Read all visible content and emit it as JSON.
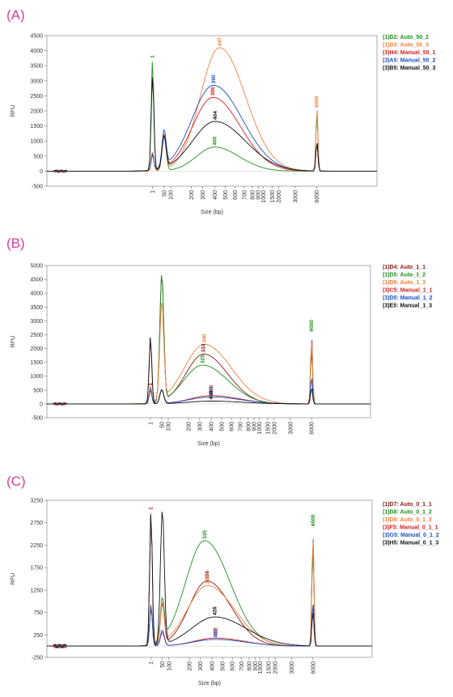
{
  "chart_data": [
    {
      "type": "line",
      "panel_label": "(A)",
      "xlabel": "Size (bp)",
      "ylabel": "RFU",
      "ylim": [
        -500,
        4500
      ],
      "yticks": [
        -500,
        0,
        500,
        1000,
        1500,
        2000,
        2500,
        3000,
        3500,
        4000,
        4500
      ],
      "xticks": [
        "1",
        "50",
        "100",
        "200",
        "300",
        "400",
        "500",
        "600",
        "700",
        "800",
        "900",
        "1000",
        "1500",
        "2000",
        "3000",
        "6000"
      ],
      "legend_position": "right",
      "series": [
        {
          "name": "(1)D2: Auto_50_2",
          "color": "#1f8f1f",
          "peaks": [
            {
              "x": "1",
              "y": 3700
            },
            {
              "x": "50",
              "y": 1200
            },
            {
              "x": "400",
              "y": 800
            },
            {
              "x": "6000",
              "y": 2000
            }
          ]
        },
        {
          "name": "(1)D3: Auto_50_3",
          "color": "#f08040",
          "peaks": [
            {
              "x": "1",
              "y": 600
            },
            {
              "x": "50",
              "y": 1200
            },
            {
              "x": "447",
              "y": 4100
            },
            {
              "x": "6000",
              "y": 2200
            }
          ]
        },
        {
          "name": "(3)H4: Manual_50_1",
          "color": "#d42020",
          "peaks": [
            {
              "x": "1",
              "y": 600
            },
            {
              "x": "50",
              "y": 1100
            },
            {
              "x": "386",
              "y": 2450
            },
            {
              "x": "6000",
              "y": 1000
            }
          ]
        },
        {
          "name": "(3)A5: Manual_50_2",
          "color": "#1f4fc0",
          "peaks": [
            {
              "x": "1",
              "y": 500
            },
            {
              "x": "50",
              "y": 1200
            },
            {
              "x": "390",
              "y": 2850
            },
            {
              "x": "6000",
              "y": 1000
            }
          ]
        },
        {
          "name": "(3)B5: Manual_50_3",
          "color": "#111111",
          "peaks": [
            {
              "x": "1",
              "y": 3150
            },
            {
              "x": "50",
              "y": 1050
            },
            {
              "x": "404",
              "y": 1650
            },
            {
              "x": "6000",
              "y": 1000
            }
          ]
        }
      ],
      "annotations": [
        "1",
        "112",
        "447",
        "390",
        "386",
        "404",
        "392",
        "6000",
        "6000"
      ]
    },
    {
      "type": "line",
      "panel_label": "(B)",
      "xlabel": "Size (bp)",
      "ylabel": "RFU",
      "ylim": [
        -500,
        5000
      ],
      "yticks": [
        -500,
        0,
        500,
        1000,
        1500,
        2000,
        2500,
        3000,
        3500,
        4000,
        4500,
        5000
      ],
      "xticks": [
        "1",
        "50",
        "100",
        "200",
        "300",
        "400",
        "500",
        "600",
        "700",
        "800",
        "900",
        "1000",
        "1500",
        "2000",
        "3000",
        "6000"
      ],
      "legend_position": "right",
      "series": [
        {
          "name": "(1)D4: Auto_1_1",
          "color": "#8b1a1a",
          "peaks": [
            {
              "x": "1",
              "y": 600
            },
            {
              "x": "50",
              "y": 4600
            },
            {
              "x": "334",
              "y": 1800
            },
            {
              "x": "6000",
              "y": 2500
            }
          ]
        },
        {
          "name": "(1)D5: Auto_1_2",
          "color": "#1f8f1f",
          "peaks": [
            {
              "x": "1",
              "y": 600
            },
            {
              "x": "50",
              "y": 4600
            },
            {
              "x": "325",
              "y": 1400
            },
            {
              "x": "6000",
              "y": 2000
            }
          ]
        },
        {
          "name": "(1)D6: Auto_1_3",
          "color": "#f08040",
          "peaks": [
            {
              "x": "1",
              "y": 600
            },
            {
              "x": "50",
              "y": 3500
            },
            {
              "x": "340",
              "y": 2150
            },
            {
              "x": "6000",
              "y": 2400
            }
          ]
        },
        {
          "name": "(3)C5: Manual_1_1",
          "color": "#d42020",
          "peaks": [
            {
              "x": "1",
              "y": 2400
            },
            {
              "x": "50",
              "y": 500
            },
            {
              "x": "400",
              "y": 300
            },
            {
              "x": "6000",
              "y": 1000
            }
          ]
        },
        {
          "name": "(3)D5: Manual_1_2",
          "color": "#1f4fc0",
          "peaks": [
            {
              "x": "1",
              "y": 500
            },
            {
              "x": "50",
              "y": 500
            },
            {
              "x": "400",
              "y": 250
            },
            {
              "x": "6000",
              "y": 1000
            }
          ]
        },
        {
          "name": "(3)E5: Manual_1_3",
          "color": "#111111",
          "peaks": [
            {
              "x": "1",
              "y": 2450
            },
            {
              "x": "50",
              "y": 500
            },
            {
              "x": "400",
              "y": 100
            },
            {
              "x": "6000",
              "y": 600
            }
          ]
        }
      ],
      "annotations": [
        "1",
        "123",
        "334",
        "340",
        "325",
        "6000"
      ]
    },
    {
      "type": "line",
      "panel_label": "(C)",
      "xlabel": "Size (bp)",
      "ylabel": "RFU",
      "ylim": [
        -250,
        3250
      ],
      "yticks": [
        -250,
        250,
        750,
        1250,
        1750,
        2250,
        2750,
        3250
      ],
      "xticks": [
        "1",
        "50",
        "100",
        "200",
        "300",
        "400",
        "500",
        "600",
        "700",
        "800",
        "900",
        "1000",
        "1500",
        "2000",
        "3000",
        "6000"
      ],
      "legend_position": "right",
      "series": [
        {
          "name": "(1)D7: Auto_0_1_1",
          "color": "#8b1a1a",
          "peaks": [
            {
              "x": "1",
              "y": 3000
            },
            {
              "x": "50",
              "y": 900
            },
            {
              "x": "356",
              "y": 1450
            },
            {
              "x": "6000",
              "y": 2600
            }
          ]
        },
        {
          "name": "(1)D8: Auto_0_1_2",
          "color": "#1f8f1f",
          "peaks": [
            {
              "x": "1",
              "y": 900
            },
            {
              "x": "50",
              "y": 900
            },
            {
              "x": "335",
              "y": 2350
            },
            {
              "x": "6000",
              "y": 2300
            }
          ]
        },
        {
          "name": "(1)D9: Auto_0_1_3",
          "color": "#f08040",
          "peaks": [
            {
              "x": "1",
              "y": 900
            },
            {
              "x": "50",
              "y": 900
            },
            {
              "x": "360",
              "y": 1350
            },
            {
              "x": "6000",
              "y": 2600
            }
          ]
        },
        {
          "name": "(3)F5: Manual_0_1_1",
          "color": "#d42020",
          "peaks": [
            {
              "x": "1",
              "y": 900
            },
            {
              "x": "50",
              "y": 300
            },
            {
              "x": "432",
              "y": 180
            },
            {
              "x": "6000",
              "y": 1000
            }
          ]
        },
        {
          "name": "(3)G5: Manual_0_1_2",
          "color": "#1f4fc0",
          "peaks": [
            {
              "x": "1",
              "y": 900
            },
            {
              "x": "50",
              "y": 350
            },
            {
              "x": "432",
              "y": 150
            },
            {
              "x": "6000",
              "y": 1000
            }
          ]
        },
        {
          "name": "(3)H5: Manual_0_1_3",
          "color": "#111111",
          "peaks": [
            {
              "x": "1",
              "y": 2950
            },
            {
              "x": "50",
              "y": 3000
            },
            {
              "x": "426",
              "y": 650
            },
            {
              "x": "6000",
              "y": 800
            }
          ]
        }
      ],
      "annotations": [
        "1",
        "50",
        "335",
        "356",
        "426",
        "432",
        "6000"
      ]
    }
  ]
}
